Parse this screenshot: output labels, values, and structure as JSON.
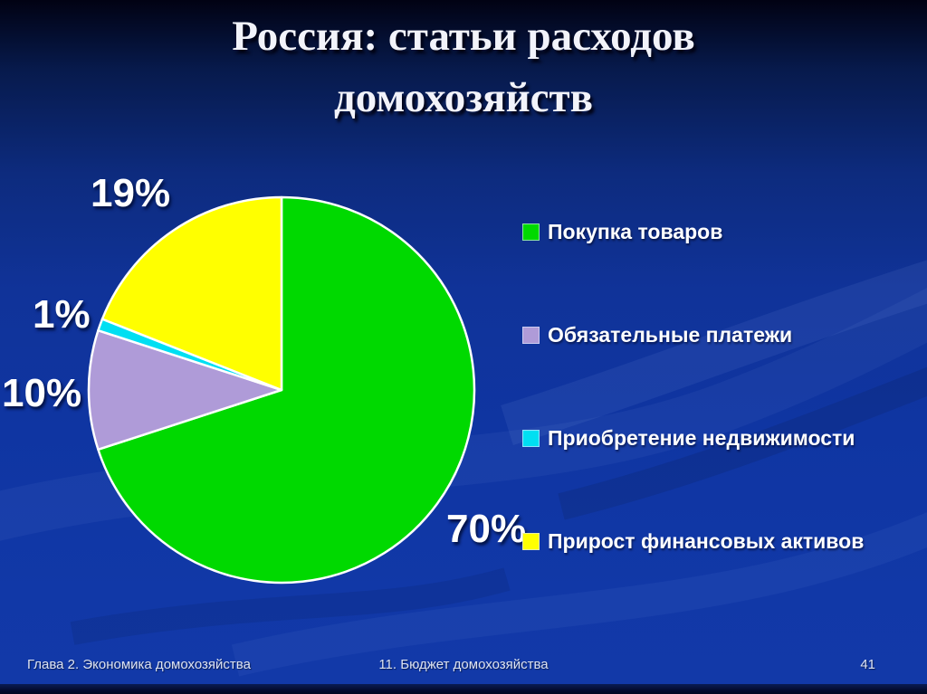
{
  "slide": {
    "title": "Россия: статьи расходов домохозяйств",
    "footer": {
      "left": "Глава 2. Экономика домохозяйства",
      "center": "11. Бюджет домохозяйства",
      "page": "41"
    }
  },
  "chart_data": {
    "type": "pie",
    "title": "Россия: статьи расходов домохозяйств",
    "units": "percent",
    "categories": [
      "Покупка товаров",
      "Обязательные платежи",
      "Приобретение недвижимости",
      "Прирост финансовых активов"
    ],
    "values": [
      70,
      10,
      1,
      19
    ],
    "slice_labels": [
      "70%",
      "10%",
      "1%",
      "19%"
    ],
    "colors": [
      "#00d900",
      "#af9bd8",
      "#00dff2",
      "#ffff00"
    ],
    "start_angle_deg": 0,
    "direction": "clockwise",
    "legend_position": "right",
    "slice_border_color": "#ffffff"
  },
  "theme": {
    "background_top": "#010213",
    "background_bottom": "#1239a8",
    "bottom_strip": "#040c30",
    "text_color": "#ffffff"
  }
}
